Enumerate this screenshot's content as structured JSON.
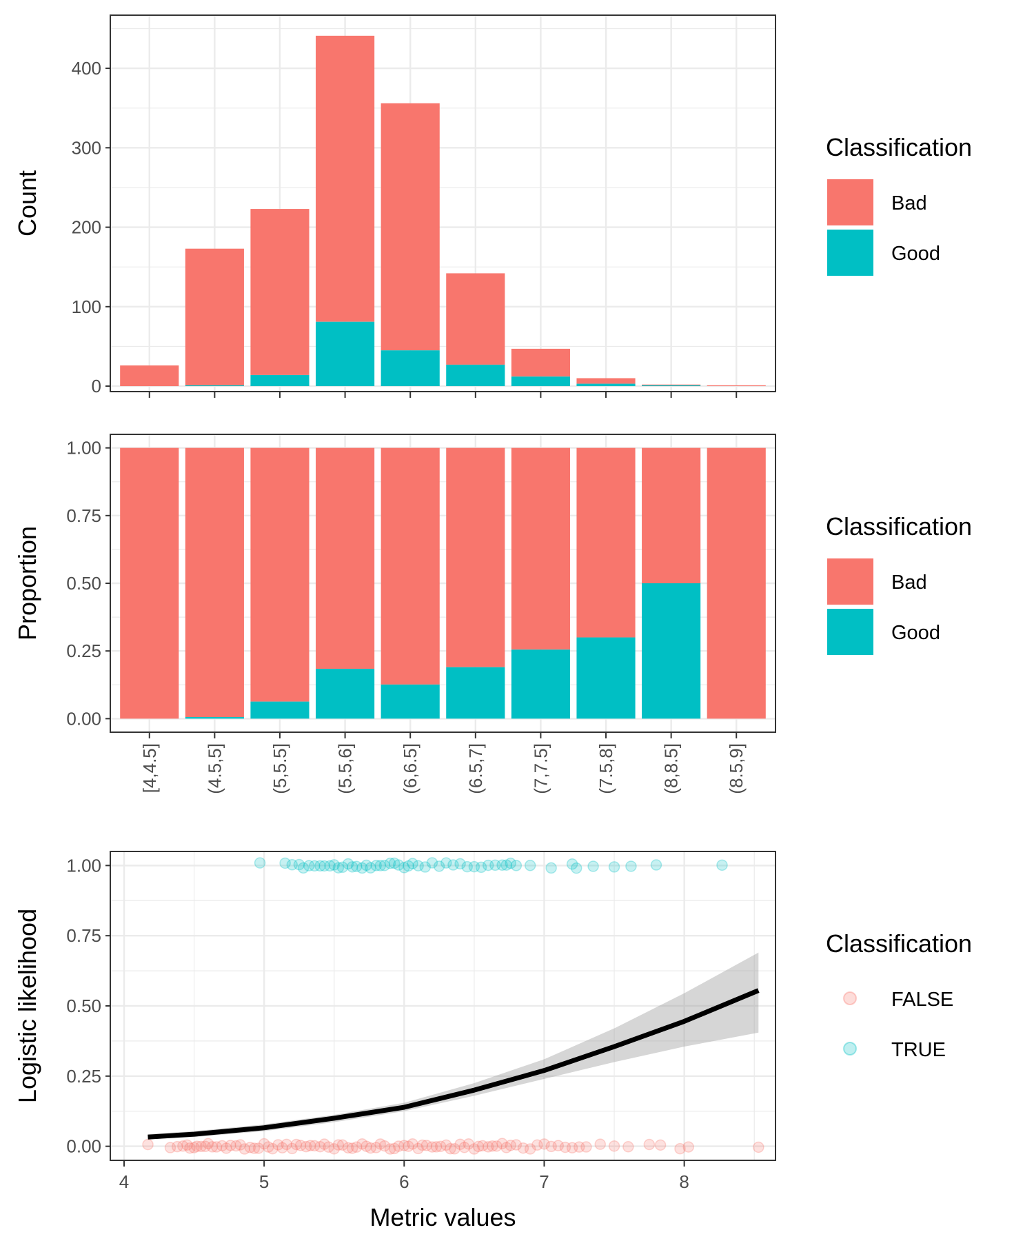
{
  "colors": {
    "bad": "#F8766D",
    "good": "#00BFC4",
    "fit_line": "#000000",
    "ribbon": "#999999",
    "grid": "#EBEBEB",
    "panel_border": "#333333"
  },
  "chart_data": [
    {
      "type": "bar",
      "stacked": true,
      "ylabel": "Count",
      "xlabel": "",
      "ylim": [
        0,
        460
      ],
      "y_ticks": [
        "0",
        "100",
        "200",
        "300",
        "400"
      ],
      "y_tick_values": [
        0,
        100,
        200,
        300,
        400
      ],
      "grid": true,
      "categories": [
        "[4,4.5]",
        "(4.5,5]",
        "(5,5.5]",
        "(5.5,6]",
        "(6,6.5]",
        "(6.5,7]",
        "(7,7.5]",
        "(7.5,8]",
        "(8,8.5]",
        "(8.5,9]"
      ],
      "series": [
        {
          "name": "Good",
          "values": [
            0,
            1,
            14,
            81,
            45,
            27,
            12,
            3,
            1,
            0
          ]
        },
        {
          "name": "Bad",
          "values": [
            26,
            172,
            209,
            360,
            311,
            115,
            35,
            7,
            1,
            1
          ]
        }
      ],
      "legend": {
        "title": "Classification",
        "entries": [
          "Bad",
          "Good"
        ],
        "placement": "right"
      }
    },
    {
      "type": "bar",
      "stacked": true,
      "ylabel": "Proportion",
      "xlabel": "",
      "ylim": [
        0,
        1
      ],
      "y_ticks": [
        "0.00",
        "0.25",
        "0.50",
        "0.75",
        "1.00"
      ],
      "y_tick_values": [
        0,
        0.25,
        0.5,
        0.75,
        1
      ],
      "grid": true,
      "categories": [
        "[4,4.5]",
        "(4.5,5]",
        "(5,5.5]",
        "(5.5,6]",
        "(6,6.5]",
        "(6.5,7]",
        "(7,7.5]",
        "(7.5,8]",
        "(8,8.5]",
        "(8.5,9]"
      ],
      "series": [
        {
          "name": "Good",
          "values": [
            0,
            0.006,
            0.063,
            0.184,
            0.126,
            0.19,
            0.255,
            0.3,
            0.5,
            0
          ]
        },
        {
          "name": "Bad",
          "values": [
            1,
            0.994,
            0.937,
            0.816,
            0.874,
            0.81,
            0.745,
            0.7,
            0.5,
            1
          ]
        }
      ],
      "legend": {
        "title": "Classification",
        "entries": [
          "Bad",
          "Good"
        ],
        "placement": "right"
      }
    },
    {
      "type": "scatter",
      "xlabel": "Metric values",
      "ylabel": "Logistic likelihood",
      "xlim": [
        4,
        8.75
      ],
      "ylim": [
        0,
        1
      ],
      "x_ticks": [
        "4",
        "5",
        "6",
        "7",
        "8"
      ],
      "x_tick_values": [
        4,
        5,
        6,
        7,
        8
      ],
      "y_ticks": [
        "0.00",
        "0.25",
        "0.50",
        "0.75",
        "1.00"
      ],
      "y_tick_values": [
        0,
        0.25,
        0.5,
        0.75,
        1
      ],
      "grid": true,
      "points_false": {
        "name": "FALSE",
        "y": 0,
        "x": [
          4.17,
          4.33,
          4.38,
          4.42,
          4.45,
          4.47,
          4.5,
          4.52,
          4.55,
          4.58,
          4.6,
          4.63,
          4.66,
          4.7,
          4.73,
          4.76,
          4.8,
          4.83,
          4.86,
          4.9,
          4.93,
          4.96,
          5.0,
          5.03,
          5.06,
          5.1,
          5.13,
          5.16,
          5.2,
          5.23,
          5.26,
          5.3,
          5.33,
          5.36,
          5.4,
          5.43,
          5.46,
          5.5,
          5.53,
          5.56,
          5.6,
          5.63,
          5.66,
          5.7,
          5.73,
          5.76,
          5.8,
          5.83,
          5.86,
          5.9,
          5.93,
          5.96,
          6.0,
          6.03,
          6.06,
          6.1,
          6.13,
          6.16,
          6.2,
          6.23,
          6.26,
          6.3,
          6.33,
          6.36,
          6.4,
          6.43,
          6.46,
          6.5,
          6.53,
          6.56,
          6.6,
          6.63,
          6.66,
          6.7,
          6.73,
          6.76,
          6.8,
          6.85,
          6.9,
          6.95,
          7.0,
          7.05,
          7.1,
          7.15,
          7.2,
          7.25,
          7.3,
          7.4,
          7.5,
          7.6,
          7.75,
          7.83,
          7.97,
          8.03,
          8.53
        ]
      },
      "points_true": {
        "name": "TRUE",
        "y": 1,
        "x": [
          4.97,
          5.15,
          5.2,
          5.25,
          5.28,
          5.32,
          5.36,
          5.4,
          5.43,
          5.47,
          5.5,
          5.53,
          5.56,
          5.6,
          5.63,
          5.66,
          5.7,
          5.73,
          5.76,
          5.8,
          5.83,
          5.86,
          5.9,
          5.93,
          5.96,
          6.0,
          6.03,
          6.06,
          6.1,
          6.15,
          6.2,
          6.25,
          6.3,
          6.35,
          6.4,
          6.45,
          6.5,
          6.55,
          6.6,
          6.65,
          6.7,
          6.73,
          6.76,
          6.8,
          6.9,
          7.05,
          7.2,
          7.23,
          7.35,
          7.5,
          7.62,
          7.8,
          8.27
        ]
      },
      "fit": {
        "x": [
          4.17,
          4.5,
          5.0,
          5.5,
          6.0,
          6.5,
          7.0,
          7.5,
          8.0,
          8.53
        ],
        "y": [
          0.033,
          0.043,
          0.066,
          0.1,
          0.139,
          0.2,
          0.27,
          0.355,
          0.445,
          0.555
        ],
        "lower": [
          0.025,
          0.033,
          0.054,
          0.086,
          0.125,
          0.18,
          0.24,
          0.3,
          0.355,
          0.405
        ],
        "upper": [
          0.043,
          0.054,
          0.078,
          0.112,
          0.155,
          0.225,
          0.31,
          0.42,
          0.545,
          0.69
        ]
      },
      "legend": {
        "title": "Classification",
        "entries": [
          "FALSE",
          "TRUE"
        ],
        "placement": "right"
      }
    }
  ]
}
